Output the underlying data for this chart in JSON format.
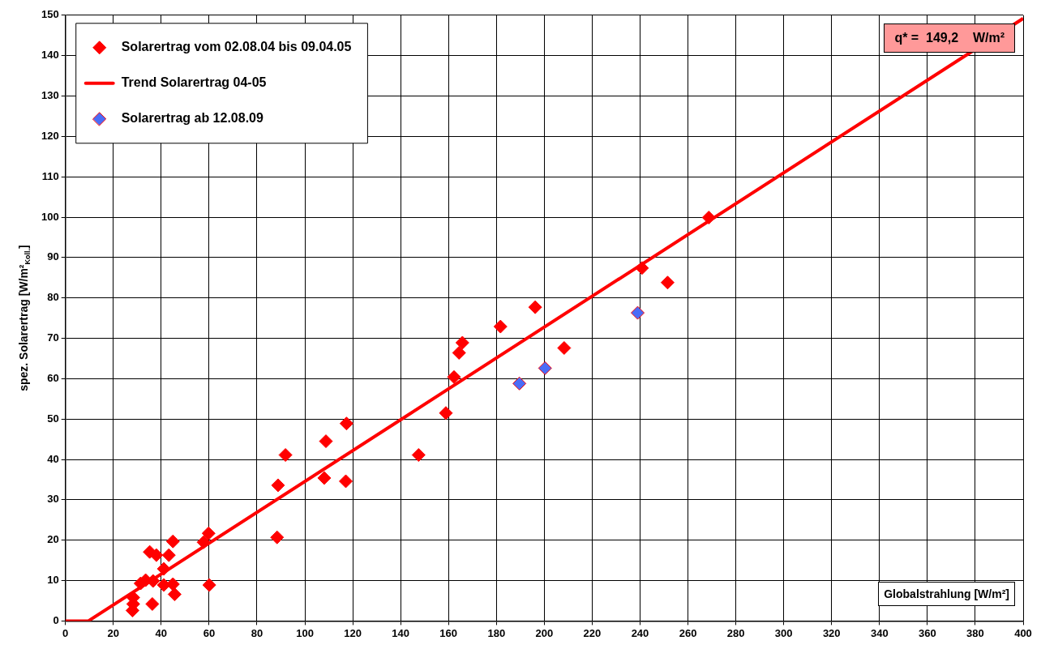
{
  "chart_data": {
    "type": "scatter",
    "xlabel": "Globalstrahlung [W/m²]",
    "ylabel": "spez. Solarertrag [W/m²$_{Koll.}$]",
    "xlim": [
      0,
      400
    ],
    "xticks": [
      0,
      20,
      40,
      60,
      80,
      100,
      120,
      140,
      160,
      180,
      200,
      220,
      240,
      260,
      280,
      300,
      320,
      340,
      360,
      380,
      400
    ],
    "ylim": [
      0,
      150
    ],
    "yticks": [
      0,
      10,
      20,
      30,
      40,
      50,
      60,
      70,
      80,
      90,
      100,
      110,
      120,
      130,
      140,
      150
    ],
    "grid": true,
    "legend": "top left",
    "marker": "diamond",
    "annotations": [
      "q* =  149,2    W/m²"
    ],
    "series": [
      {
        "name": "Solarertrag vom 02.08.04 bis 09.04.05",
        "color": "#ff0000",
        "x": [
          268.7,
          240.8,
          251.5,
          196.2,
          181.7,
          165.8,
          164.4,
          208.3,
          162.3,
          158.9,
          147.5,
          117.4,
          108.8,
          108.1,
          117.1,
          91.9,
          88.8,
          88.4,
          59.8,
          57.7,
          60.1,
          44.9,
          43.2,
          35.2,
          38,
          41.1,
          44.9,
          45.6,
          41.1,
          36.6,
          33.5,
          31.4,
          36.3,
          28.3,
          28.3,
          28
        ],
        "values": [
          99.9,
          87.4,
          83.8,
          77.7,
          72.9,
          68.9,
          66.4,
          67.6,
          60.4,
          51.5,
          41.1,
          48.9,
          44.5,
          35.4,
          34.6,
          41.1,
          33.6,
          20.7,
          21.7,
          19.5,
          8.9,
          19.7,
          16.3,
          17.1,
          16.3,
          12.9,
          9.1,
          6.6,
          8.9,
          9.9,
          10.1,
          9.3,
          4.2,
          5.8,
          4.2,
          2.6
        ]
      },
      {
        "name": "Trend Solarertrag 04-05",
        "type": "line",
        "color": "#ff0000",
        "line_style": "solid",
        "marker": "none",
        "x": [
          0,
          9.6,
          400
        ],
        "values": [
          0,
          0,
          149.2
        ]
      },
      {
        "name": "Solarertrag ab 12.08.09",
        "color": "#4a6cf7",
        "x": [
          189.6,
          200.3,
          239
        ],
        "values": [
          58.8,
          62.6,
          76.3
        ]
      }
    ]
  }
}
